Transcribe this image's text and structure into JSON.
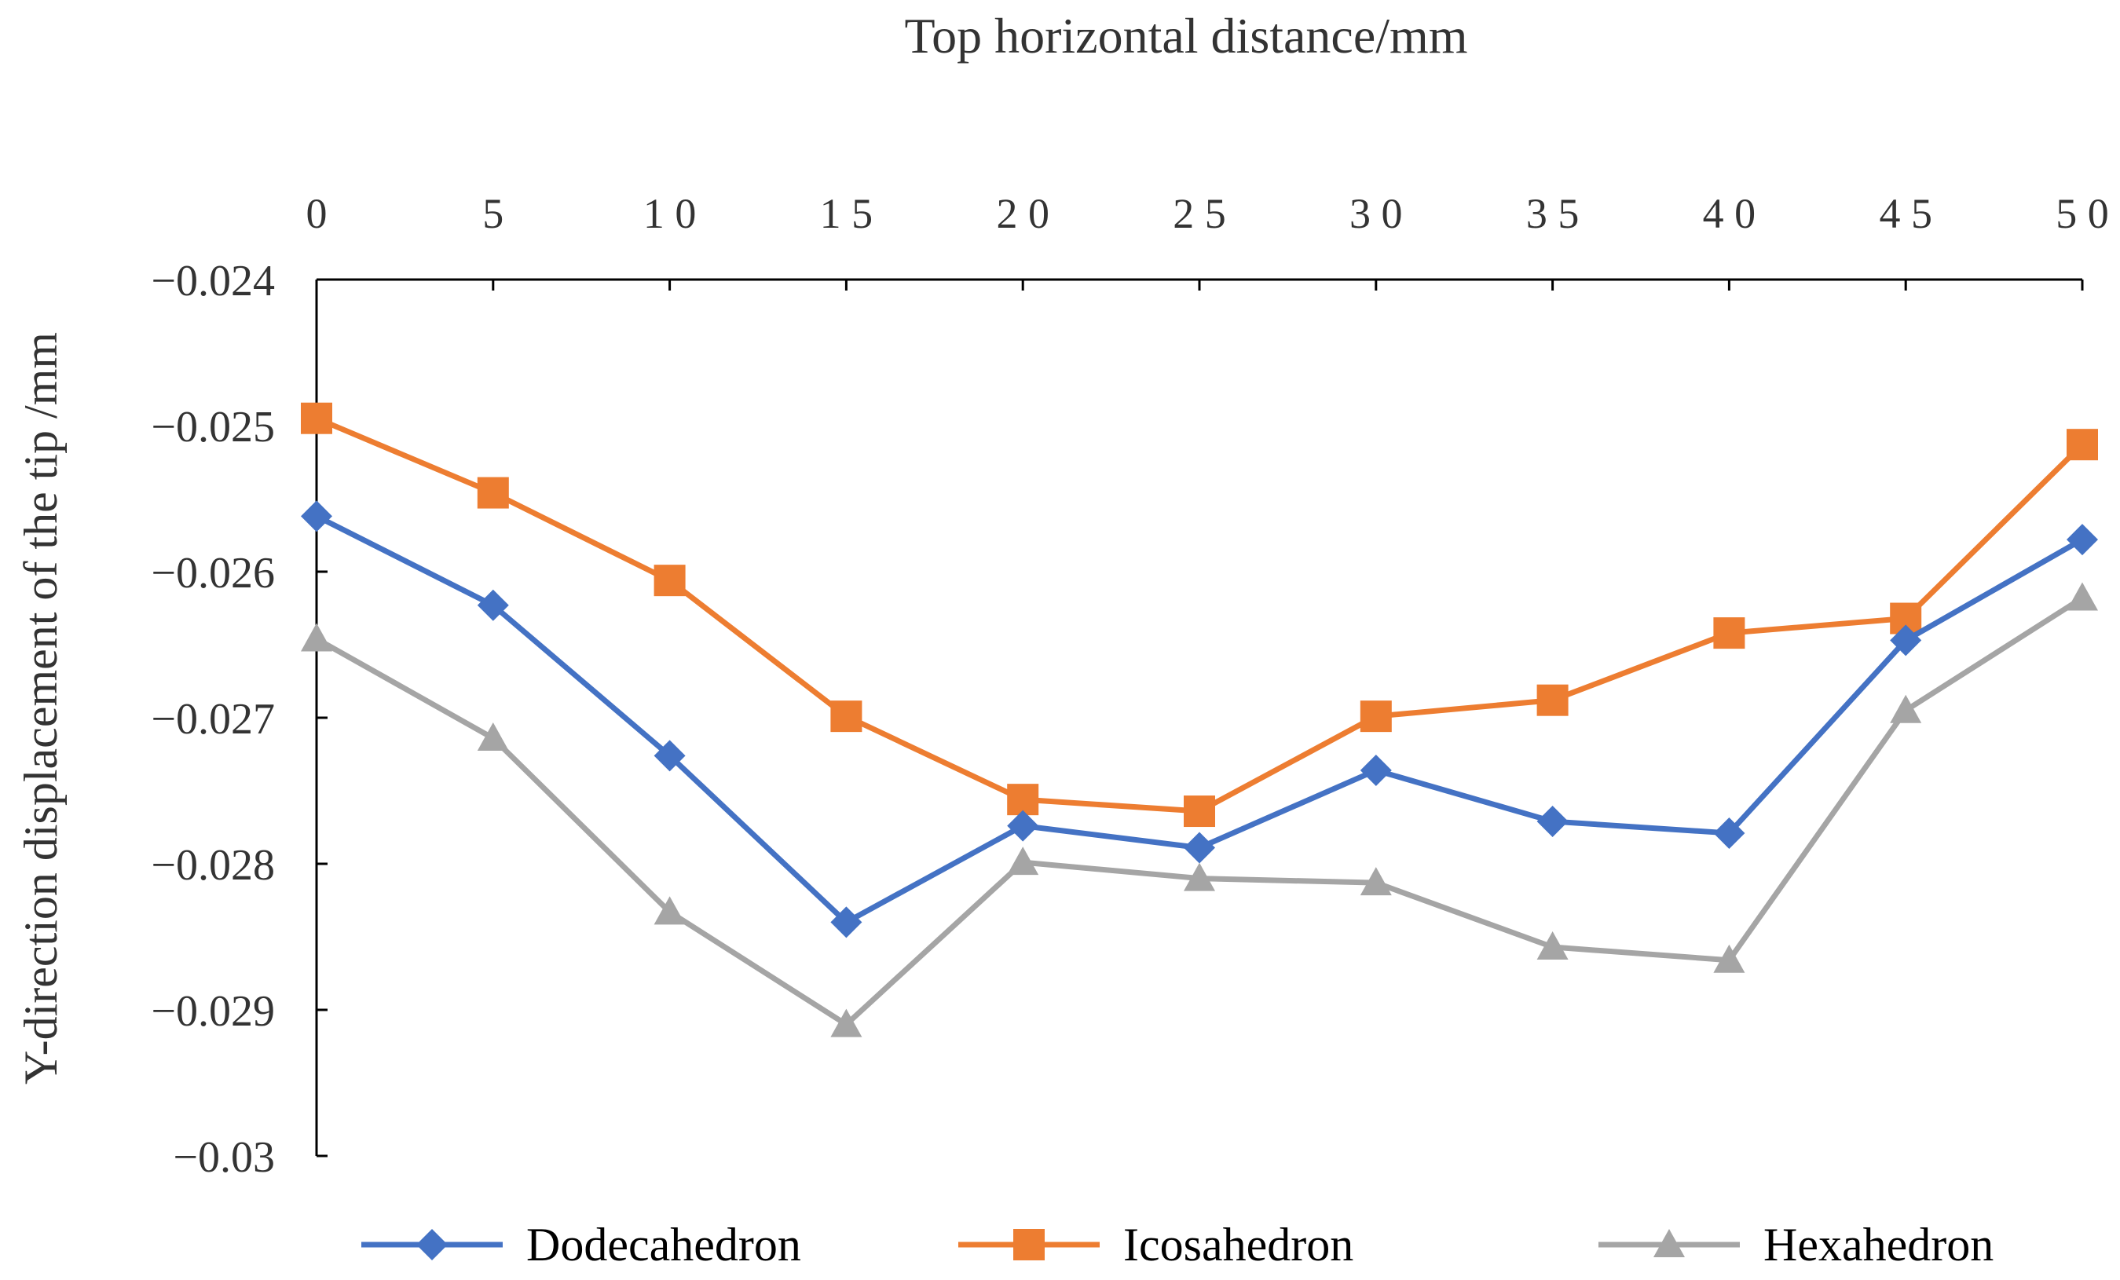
{
  "chart_data": {
    "type": "line",
    "title": "",
    "xlabel": "Top horizontal distance/mm",
    "ylabel": "Y-direction displacement of the tip /mm",
    "x_axis_position": "top",
    "x": [
      0,
      5,
      10,
      15,
      20,
      25,
      30,
      35,
      40,
      45,
      50
    ],
    "x_tick_labels": [
      "0",
      "5",
      "1 0",
      "1 5",
      "2 0",
      "2 5",
      "3 0",
      "3 5",
      "4 0",
      "4 5",
      "5 0"
    ],
    "ylim": [
      -0.03,
      -0.024
    ],
    "y_ticks": [
      -0.024,
      -0.025,
      -0.026,
      -0.027,
      -0.028,
      -0.029,
      -0.03
    ],
    "y_tick_labels": [
      "−0.024",
      "−0.025",
      "−0.026",
      "−0.027",
      "−0.028",
      "−0.029",
      "−0.03"
    ],
    "grid": false,
    "legend_position": "bottom",
    "series": [
      {
        "name": "Dodecahedron",
        "color": "#4472C4",
        "marker": "diamond",
        "values": [
          -0.02562,
          -0.02623,
          -0.02726,
          -0.0284,
          -0.02774,
          -0.02789,
          -0.02736,
          -0.02771,
          -0.02779,
          -0.02647,
          -0.02578
        ]
      },
      {
        "name": "Icosahedron",
        "color": "#ED7D31",
        "marker": "square",
        "values": [
          -0.02495,
          -0.02546,
          -0.02606,
          -0.02699,
          -0.02756,
          -0.02764,
          -0.02699,
          -0.02688,
          -0.02642,
          -0.02632,
          -0.02513
        ]
      },
      {
        "name": "Hexahedron",
        "color": "#A5A5A5",
        "marker": "triangle",
        "values": [
          -0.02646,
          -0.02714,
          -0.02833,
          -0.0291,
          -0.02799,
          -0.0281,
          -0.02813,
          -0.02857,
          -0.02866,
          -0.02695,
          -0.02618
        ]
      }
    ]
  }
}
